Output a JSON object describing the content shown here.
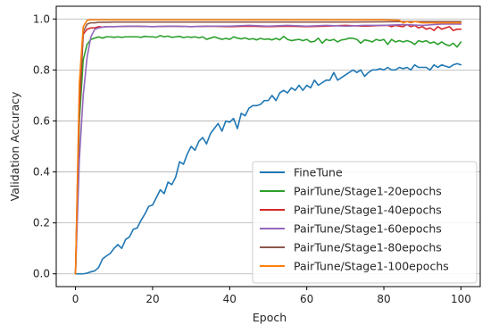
{
  "chart_data": {
    "type": "line",
    "title": "",
    "xlabel": "Epoch",
    "ylabel": "Validation Accuracy",
    "xlim": [
      -5,
      105
    ],
    "ylim": [
      -0.05,
      1.05
    ],
    "xticks": [
      0,
      20,
      40,
      60,
      80,
      100
    ],
    "yticks": [
      0.0,
      0.2,
      0.4,
      0.6,
      0.8,
      1.0
    ],
    "xtick_labels": [
      "0",
      "20",
      "40",
      "60",
      "80",
      "100"
    ],
    "ytick_labels": [
      "0.0",
      "0.2",
      "0.4",
      "0.6",
      "0.8",
      "1.0"
    ],
    "grid": "horizontal",
    "legend_position": "lower-right",
    "series": [
      {
        "name": "FineTune",
        "color": "#1f77b4",
        "x": [
          0,
          1,
          2,
          3,
          4,
          5,
          6,
          7,
          8,
          9,
          10,
          11,
          12,
          13,
          14,
          15,
          16,
          17,
          18,
          19,
          20,
          21,
          22,
          23,
          24,
          25,
          26,
          27,
          28,
          29,
          30,
          31,
          32,
          33,
          34,
          35,
          36,
          37,
          38,
          39,
          40,
          41,
          42,
          43,
          44,
          45,
          46,
          47,
          48,
          49,
          50,
          51,
          52,
          53,
          54,
          55,
          56,
          57,
          58,
          59,
          60,
          61,
          62,
          63,
          64,
          65,
          66,
          67,
          68,
          69,
          70,
          71,
          72,
          73,
          74,
          75,
          76,
          77,
          78,
          79,
          80,
          81,
          82,
          83,
          84,
          85,
          86,
          87,
          88,
          89,
          90,
          91,
          92,
          93,
          94,
          95,
          96,
          97,
          98,
          99,
          100
        ],
        "y": [
          0.0,
          0.0,
          0.0,
          0.003,
          0.008,
          0.012,
          0.025,
          0.058,
          0.07,
          0.08,
          0.1,
          0.115,
          0.1,
          0.135,
          0.145,
          0.175,
          0.18,
          0.21,
          0.235,
          0.265,
          0.27,
          0.3,
          0.33,
          0.315,
          0.36,
          0.35,
          0.38,
          0.44,
          0.43,
          0.47,
          0.5,
          0.485,
          0.52,
          0.535,
          0.51,
          0.55,
          0.57,
          0.59,
          0.56,
          0.6,
          0.595,
          0.61,
          0.57,
          0.63,
          0.62,
          0.65,
          0.66,
          0.66,
          0.665,
          0.68,
          0.68,
          0.7,
          0.68,
          0.71,
          0.72,
          0.71,
          0.73,
          0.72,
          0.74,
          0.72,
          0.74,
          0.73,
          0.76,
          0.74,
          0.75,
          0.76,
          0.76,
          0.79,
          0.76,
          0.77,
          0.78,
          0.79,
          0.8,
          0.79,
          0.8,
          0.775,
          0.79,
          0.8,
          0.8,
          0.805,
          0.8,
          0.81,
          0.8,
          0.8,
          0.81,
          0.805,
          0.81,
          0.8,
          0.82,
          0.81,
          0.81,
          0.81,
          0.8,
          0.82,
          0.81,
          0.82,
          0.815,
          0.81,
          0.82,
          0.825,
          0.82
        ]
      },
      {
        "name": "PairTune/Stage1-20epochs",
        "color": "#2ca02c",
        "x": [
          0,
          1,
          2,
          3,
          4,
          5,
          6,
          7,
          8,
          9,
          10,
          11,
          12,
          13,
          14,
          15,
          16,
          17,
          18,
          19,
          20,
          21,
          22,
          23,
          24,
          25,
          26,
          27,
          28,
          29,
          30,
          31,
          32,
          33,
          34,
          35,
          36,
          37,
          38,
          39,
          40,
          41,
          42,
          43,
          44,
          45,
          46,
          47,
          48,
          49,
          50,
          51,
          52,
          53,
          54,
          55,
          56,
          57,
          58,
          59,
          60,
          61,
          62,
          63,
          64,
          65,
          66,
          67,
          68,
          69,
          70,
          71,
          72,
          73,
          74,
          75,
          76,
          77,
          78,
          79,
          80,
          81,
          82,
          83,
          84,
          85,
          86,
          87,
          88,
          89,
          90,
          91,
          92,
          93,
          94,
          95,
          96,
          97,
          98,
          99,
          100
        ],
        "y": [
          0.0,
          0.6,
          0.84,
          0.9,
          0.92,
          0.925,
          0.93,
          0.925,
          0.93,
          0.93,
          0.928,
          0.93,
          0.928,
          0.93,
          0.93,
          0.93,
          0.93,
          0.928,
          0.932,
          0.93,
          0.93,
          0.928,
          0.935,
          0.93,
          0.933,
          0.928,
          0.93,
          0.932,
          0.927,
          0.93,
          0.928,
          0.93,
          0.926,
          0.93,
          0.92,
          0.925,
          0.93,
          0.925,
          0.92,
          0.924,
          0.92,
          0.93,
          0.925,
          0.922,
          0.926,
          0.92,
          0.923,
          0.918,
          0.924,
          0.92,
          0.922,
          0.918,
          0.924,
          0.918,
          0.932,
          0.92,
          0.915,
          0.918,
          0.92,
          0.915,
          0.92,
          0.91,
          0.912,
          0.925,
          0.905,
          0.92,
          0.915,
          0.92,
          0.91,
          0.918,
          0.92,
          0.925,
          0.924,
          0.92,
          0.905,
          0.918,
          0.915,
          0.91,
          0.92,
          0.915,
          0.92,
          0.9,
          0.92,
          0.91,
          0.915,
          0.91,
          0.915,
          0.91,
          0.9,
          0.915,
          0.91,
          0.915,
          0.905,
          0.91,
          0.9,
          0.91,
          0.9,
          0.895,
          0.905,
          0.89,
          0.91
        ]
      },
      {
        "name": "PairTune/Stage1-40epochs",
        "color": "#d62728",
        "x": [
          0,
          1,
          2,
          3,
          4,
          5,
          6,
          7,
          8,
          10,
          15,
          20,
          25,
          30,
          35,
          40,
          45,
          50,
          55,
          60,
          65,
          70,
          75,
          80,
          81,
          82,
          83,
          84,
          85,
          86,
          87,
          88,
          89,
          90,
          91,
          92,
          93,
          94,
          95,
          96,
          97,
          98,
          99,
          100
        ],
        "y": [
          0.0,
          0.65,
          0.94,
          0.96,
          0.965,
          0.965,
          0.97,
          0.968,
          0.97,
          0.97,
          0.972,
          0.97,
          0.972,
          0.97,
          0.972,
          0.97,
          0.972,
          0.97,
          0.972,
          0.97,
          0.972,
          0.975,
          0.972,
          0.975,
          0.975,
          0.97,
          0.975,
          0.972,
          0.97,
          0.978,
          0.97,
          0.975,
          0.965,
          0.97,
          0.96,
          0.965,
          0.955,
          0.97,
          0.96,
          0.965,
          0.97,
          0.955,
          0.96,
          0.96
        ]
      },
      {
        "name": "PairTune/Stage1-60epochs",
        "color": "#9467bd",
        "x": [
          0,
          1,
          2,
          3,
          4,
          5,
          6,
          7,
          8,
          10,
          15,
          20,
          25,
          30,
          35,
          40,
          45,
          50,
          55,
          60,
          65,
          70,
          75,
          80,
          85,
          90,
          95,
          100
        ],
        "y": [
          0.0,
          0.45,
          0.7,
          0.85,
          0.93,
          0.96,
          0.965,
          0.968,
          0.97,
          0.97,
          0.972,
          0.97,
          0.972,
          0.97,
          0.972,
          0.972,
          0.975,
          0.972,
          0.975,
          0.972,
          0.975,
          0.972,
          0.975,
          0.975,
          0.978,
          0.975,
          0.98,
          0.98
        ]
      },
      {
        "name": "PairTune/Stage1-80epochs",
        "color": "#8c564b",
        "x": [
          0,
          1,
          2,
          3,
          4,
          5,
          6,
          8,
          10,
          15,
          20,
          30,
          40,
          50,
          60,
          70,
          80,
          85,
          90,
          95,
          100
        ],
        "y": [
          0.0,
          0.7,
          0.95,
          0.98,
          0.985,
          0.985,
          0.987,
          0.987,
          0.988,
          0.988,
          0.988,
          0.988,
          0.988,
          0.988,
          0.988,
          0.988,
          0.989,
          0.99,
          0.99,
          0.99,
          0.99
        ]
      },
      {
        "name": "PairTune/Stage1-100epochs",
        "color": "#ff7f0e",
        "x": [
          0,
          1,
          2,
          3,
          4,
          5,
          6,
          8,
          10,
          15,
          20,
          30,
          40,
          50,
          60,
          70,
          80,
          84,
          85,
          86,
          87,
          88,
          90,
          95,
          100
        ],
        "y": [
          0.0,
          0.75,
          0.97,
          0.995,
          0.997,
          0.997,
          0.997,
          0.997,
          0.997,
          0.997,
          0.997,
          0.997,
          0.997,
          0.997,
          0.997,
          0.997,
          0.997,
          0.995,
          0.985,
          0.99,
          0.985,
          0.99,
          0.985,
          0.985,
          0.985
        ]
      }
    ]
  }
}
